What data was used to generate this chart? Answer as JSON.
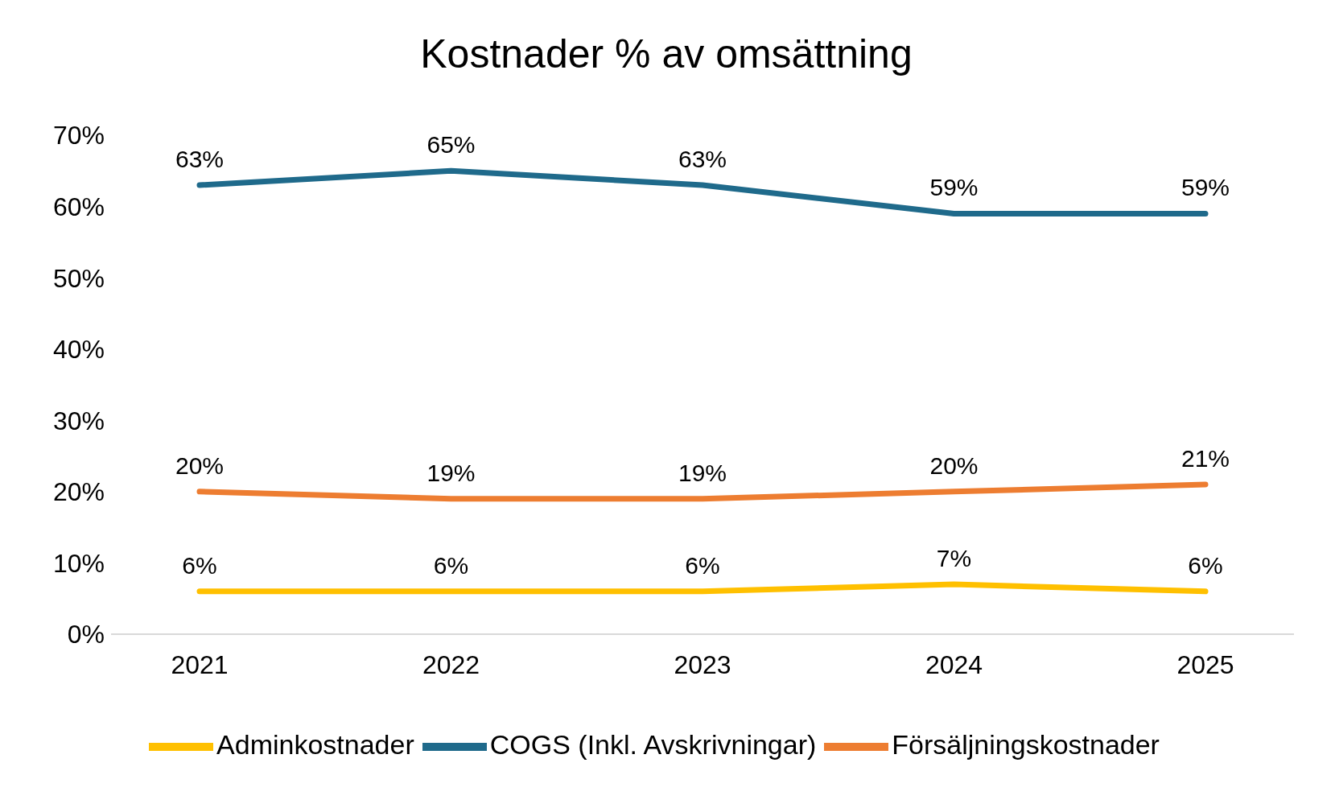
{
  "chart_data": {
    "type": "line",
    "title": "Kostnader % av omsättning",
    "categories": [
      "2021",
      "2022",
      "2023",
      "2024",
      "2025"
    ],
    "series": [
      {
        "name": "COGS (Inkl. Avskrivningar)",
        "color": "#1f6a8b",
        "values": [
          63,
          65,
          63,
          59,
          59
        ],
        "value_labels": [
          "63%",
          "65%",
          "63%",
          "59%",
          "59%"
        ]
      },
      {
        "name": "Försäljningskostnader",
        "color": "#ed7d31",
        "values": [
          20,
          19,
          19,
          20,
          21
        ],
        "value_labels": [
          "20%",
          "19%",
          "19%",
          "20%",
          "21%"
        ]
      },
      {
        "name": "Adminkostnader",
        "color": "#ffc000",
        "values": [
          6,
          6,
          6,
          7,
          6
        ],
        "value_labels": [
          "6%",
          "6%",
          "6%",
          "7%",
          "6%"
        ]
      }
    ],
    "ylim": [
      0,
      70
    ],
    "yticks": [
      {
        "value": 0,
        "label": "0%"
      },
      {
        "value": 10,
        "label": "10%"
      },
      {
        "value": 20,
        "label": "20%"
      },
      {
        "value": 30,
        "label": "30%"
      },
      {
        "value": 40,
        "label": "40%"
      },
      {
        "value": 50,
        "label": "50%"
      },
      {
        "value": 60,
        "label": "60%"
      },
      {
        "value": 70,
        "label": "70%"
      }
    ],
    "grid": false,
    "legend": "bottom",
    "marker": "none",
    "line_style": "solid"
  }
}
